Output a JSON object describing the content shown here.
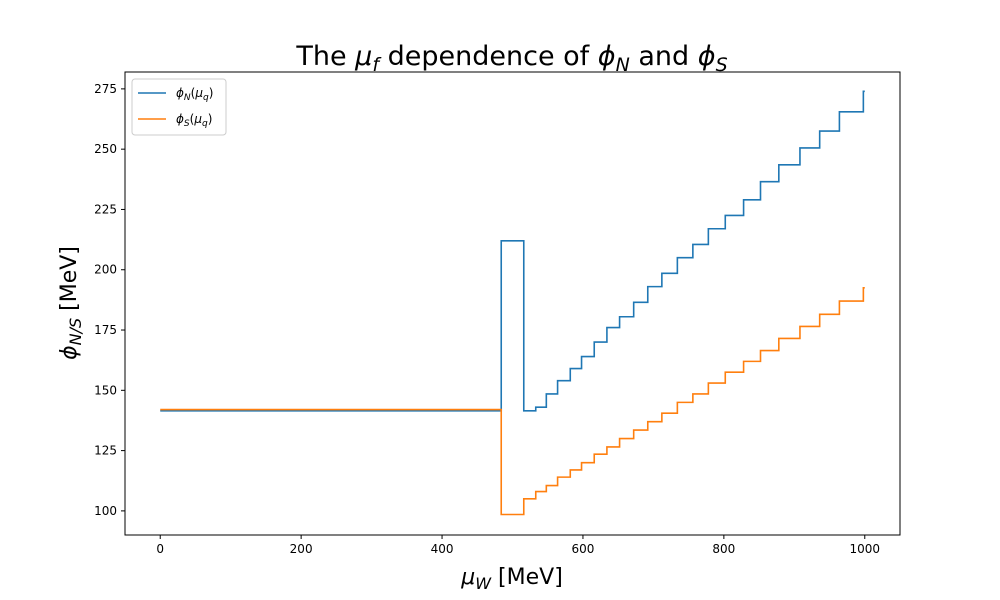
{
  "chart_data": {
    "type": "line",
    "title": {
      "prefix": "The ",
      "mu": "μ",
      "mu_sub": "f",
      "middle": " dependence of ",
      "phi1": "ϕ",
      "phi1_sub": "N",
      "and": " and ",
      "phi2": "ϕ",
      "phi2_sub": "S"
    },
    "xlabel": {
      "sym": "μ",
      "sub": "W",
      "unit": " [MeV]"
    },
    "ylabel": {
      "sym": "ϕ",
      "sub": "N/S",
      "unit": " [MeV]"
    },
    "xlim": [
      -50,
      1050
    ],
    "ylim": [
      90,
      282
    ],
    "xticks": [
      0,
      200,
      400,
      600,
      800,
      1000
    ],
    "yticks": [
      100,
      125,
      150,
      175,
      200,
      225,
      250,
      275
    ],
    "grid": false,
    "legend_position": "top-left",
    "series": [
      {
        "name": {
          "sym": "ϕ",
          "sub": "N",
          "arg_open": "(",
          "arg_sym": "μ",
          "arg_sub": "q",
          "arg_close": ")"
        },
        "color": "#1f77b4",
        "step_x": [
          0,
          484,
          516,
          533,
          548,
          564,
          582,
          598,
          616,
          634,
          652,
          672,
          692,
          712,
          734,
          756,
          778,
          802,
          828,
          852,
          878,
          908,
          936,
          964,
          998,
          1000
        ],
        "step_y": [
          141.5,
          212,
          141.5,
          143,
          148.5,
          154,
          159,
          164,
          170,
          176,
          180.5,
          186.5,
          193,
          198.5,
          205,
          210.5,
          217,
          222.5,
          229,
          236.5,
          243.5,
          250.5,
          257.5,
          265.5,
          274
        ]
      },
      {
        "name": {
          "sym": "ϕ",
          "sub": "S",
          "arg_open": "(",
          "arg_sym": "μ",
          "arg_sub": "q",
          "arg_close": ")"
        },
        "color": "#ff7f0e",
        "step_x": [
          0,
          484,
          516,
          533,
          548,
          564,
          582,
          598,
          616,
          634,
          652,
          672,
          692,
          712,
          734,
          756,
          778,
          802,
          828,
          852,
          878,
          908,
          936,
          964,
          998,
          1000
        ],
        "step_y": [
          142,
          98.5,
          105,
          108,
          110.5,
          114,
          117,
          120,
          123.5,
          126.5,
          130,
          133.5,
          137,
          140.5,
          145,
          148.5,
          153,
          157.5,
          162,
          166.5,
          171.5,
          176.5,
          181.5,
          187,
          192.5
        ]
      }
    ]
  }
}
